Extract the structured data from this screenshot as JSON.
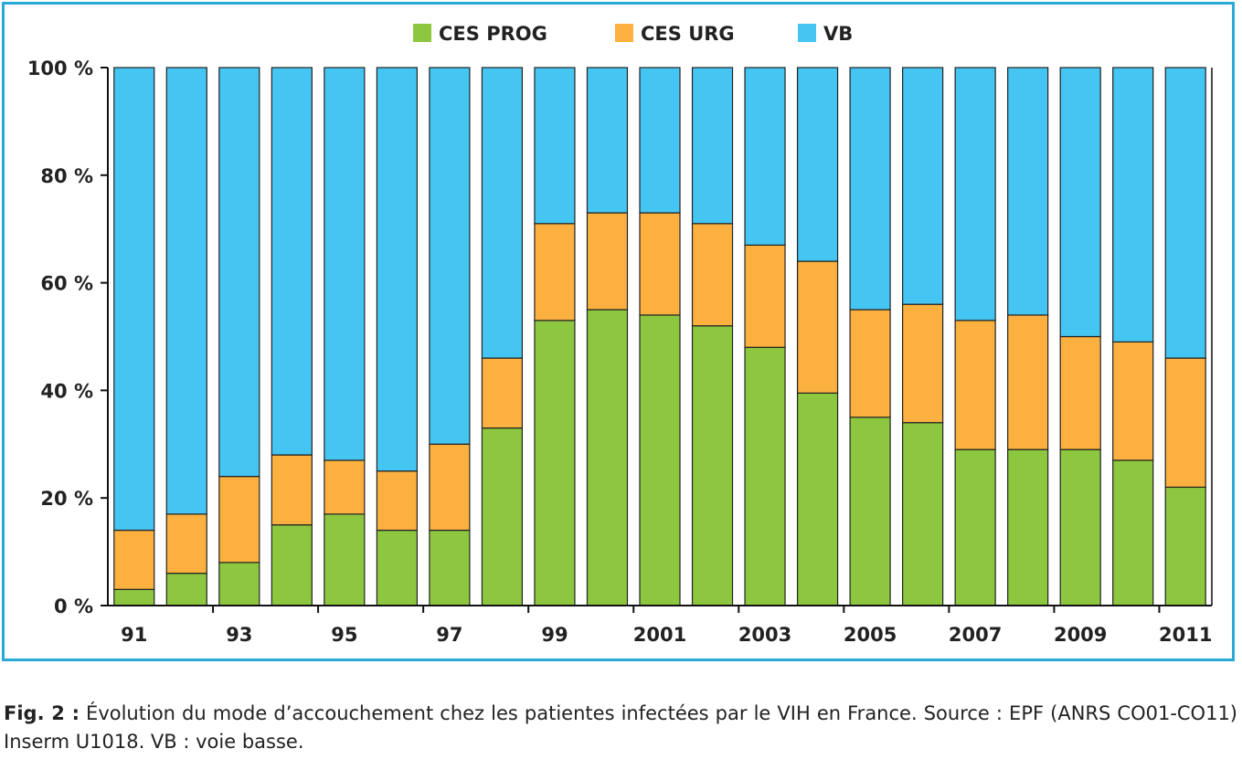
{
  "colors": {
    "frame": "#2aa9d8",
    "ces_prog": "#8dc63f",
    "ces_urg": "#fbb040",
    "vb": "#45c6f2",
    "bar_stroke": "#222222"
  },
  "chart_data": {
    "type": "bar",
    "stacked": true,
    "title": "",
    "xlabel": "",
    "ylabel": "",
    "ylim": [
      0,
      100
    ],
    "y_ticks": [
      "0 %",
      "20 %",
      "40 %",
      "60 %",
      "80 %",
      "100 %"
    ],
    "x_tick_labels": [
      "91",
      "93",
      "95",
      "97",
      "99",
      "2001",
      "2003",
      "2005",
      "2007",
      "2009",
      "2011"
    ],
    "categories": [
      "1991",
      "1992",
      "1993",
      "1994",
      "1995",
      "1996",
      "1997",
      "1998",
      "1999",
      "2000",
      "2001",
      "2002",
      "2003",
      "2004",
      "2005",
      "2006",
      "2007",
      "2008",
      "2009",
      "2010",
      "2011"
    ],
    "legend_position": "top-center",
    "series": [
      {
        "name": "CES PROG",
        "color": "#8dc63f",
        "values": [
          3,
          6,
          8,
          15,
          17,
          14,
          14,
          33,
          53,
          55,
          54,
          52,
          48,
          39.5,
          35,
          34,
          29,
          29,
          29,
          27,
          22
        ]
      },
      {
        "name": "CES URG",
        "color": "#fbb040",
        "values": [
          11,
          11,
          16,
          13,
          10,
          11,
          16,
          13,
          18,
          18,
          19,
          19,
          19,
          24.5,
          20,
          22,
          24,
          25,
          21,
          22,
          24
        ]
      },
      {
        "name": "VB",
        "color": "#45c6f2",
        "values": [
          86,
          83,
          76,
          72,
          73,
          75,
          70,
          54,
          29,
          27,
          27,
          29,
          33,
          36,
          45,
          44,
          47,
          46,
          50,
          51,
          54
        ]
      }
    ]
  },
  "caption": {
    "label": "Fig. 2 :",
    "text": " Évolution du mode d’accouchement chez les patientes infectées par le VIH en France. Source : EPF (ANRS CO01-CO11) Inserm U1018. VB : voie basse."
  }
}
